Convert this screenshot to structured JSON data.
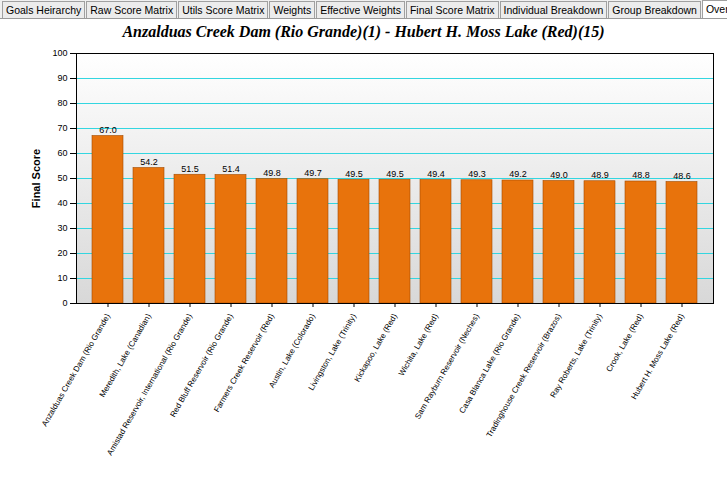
{
  "tabs": [
    "Goals Heirarchy",
    "Raw Score Matrix",
    "Utils Score Matrix",
    "Weights",
    "Effective Weights",
    "Final Score Matrix",
    "Individual Breakdown",
    "Group Breakdown",
    "Overall Results"
  ],
  "active_tab": "Overall Results",
  "chart_data": {
    "type": "bar",
    "title": "Anzalduas Creek Dam (Rio Grande)(1) - Hubert H. Moss Lake (Red)(15)",
    "y_label": "Final Score",
    "categories": [
      "Anzalduas Creek Dam (Rio Grande)",
      "Meredith, Lake (Canadian)",
      "Amistad Reservoir, International (Rio Grande)",
      "Red Bluff Reservoir (Rio Grande)",
      "Farmers Creek Reservoir (Red)",
      "Austin, Lake (Colorado)",
      "Livingston, Lake (Trinity)",
      "Kickapoo, Lake (Red)",
      "Wichita, Lake (Red)",
      "Sam Rayburn Reservoir (Neches)",
      "Casa Blanca Lake (Rio Grande)",
      "Tradinghouse Creek Reservoir (Brazos)",
      "Ray Roberts, Lake (Trinity)",
      "Crook, Lake (Red)",
      "Hubert H. Moss Lake (Red)"
    ],
    "values": [
      67.0,
      54.2,
      51.5,
      51.4,
      49.8,
      49.7,
      49.5,
      49.5,
      49.4,
      49.3,
      49.2,
      49.0,
      48.9,
      48.8,
      48.6
    ],
    "value_labels": [
      "67.0",
      "54.2",
      "51.5",
      "51.4",
      "49.8",
      "49.7",
      "49.5",
      "49.5",
      "49.4",
      "49.3",
      "49.2",
      "49.0",
      "48.9",
      "48.8",
      "48.6"
    ],
    "color": "#e8730c",
    "ylim": [
      0,
      100
    ],
    "yticks": [
      0,
      10,
      20,
      30,
      40,
      50,
      60,
      70,
      80,
      90,
      100
    ],
    "grid": true,
    "data_labels": true
  }
}
